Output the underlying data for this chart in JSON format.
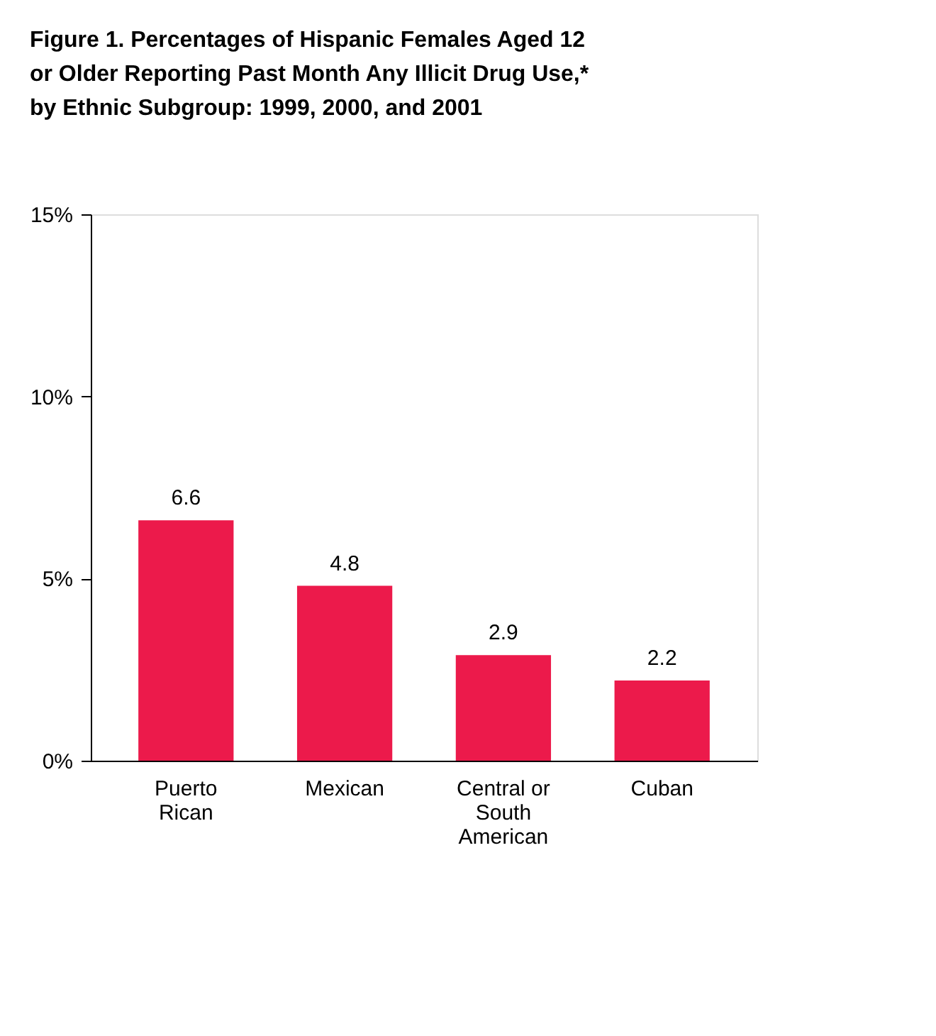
{
  "chart_data": {
    "type": "bar",
    "title": "Figure 1.  Percentages of Hispanic Females Aged 12 or Older Reporting Past Month Any Illicit Drug Use,* by Ethnic Subgroup:  1999, 2000, and 2001",
    "categories": [
      "Puerto Rican",
      "Mexican",
      "Central or South American",
      "Cuban"
    ],
    "values": [
      6.6,
      4.8,
      2.9,
      2.2
    ],
    "color": "#ec1a4b",
    "ylim": [
      0,
      15
    ],
    "yticks": [
      {
        "value": 0,
        "label": "0%"
      },
      {
        "value": 5,
        "label": "5%"
      },
      {
        "value": 10,
        "label": "10%"
      },
      {
        "value": 15,
        "label": "15%"
      }
    ],
    "grid": false,
    "data_labels": true
  }
}
